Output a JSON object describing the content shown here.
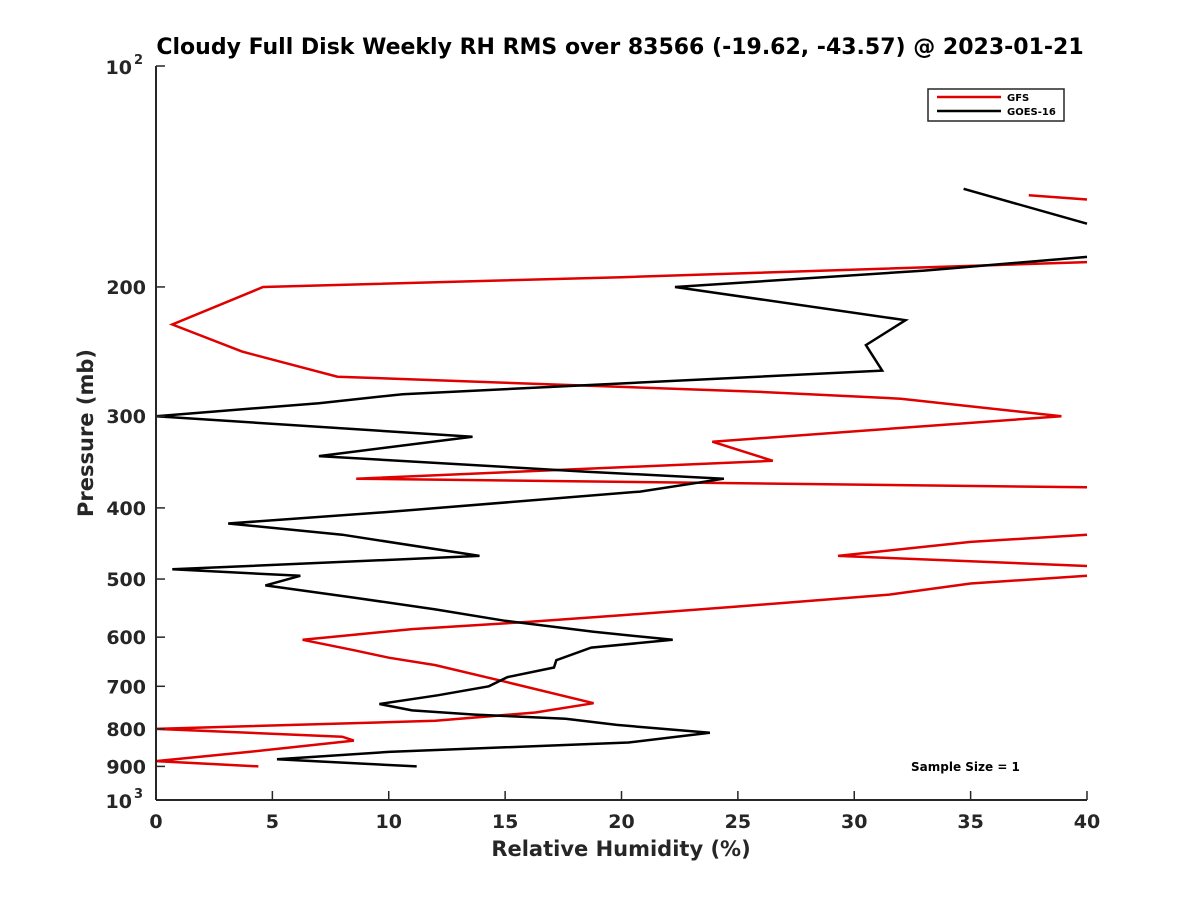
{
  "chart_data": {
    "type": "line",
    "title": "Cloudy Full Disk Weekly RH RMS over 83566 (-19.62, -43.57) @ 2023-01-21",
    "xlabel": "Relative Humidity (%)",
    "ylabel": "Pressure (mb)",
    "xlim": [
      0,
      40
    ],
    "ylim": [
      100,
      1000
    ],
    "yscale": "log",
    "y_reversed": true,
    "grid": false,
    "legend_position": "top-right",
    "x_ticks": [
      "0",
      "5",
      "10",
      "15",
      "20",
      "25",
      "30",
      "35",
      "40"
    ],
    "y_ticks": [
      {
        "value": 100,
        "base": "10",
        "exp": "2"
      },
      {
        "value": 200,
        "label": "200"
      },
      {
        "value": 300,
        "label": "300"
      },
      {
        "value": 400,
        "label": "400"
      },
      {
        "value": 500,
        "label": "500"
      },
      {
        "value": 600,
        "label": "600"
      },
      {
        "value": 700,
        "label": "700"
      },
      {
        "value": 800,
        "label": "800"
      },
      {
        "value": 900,
        "label": "900"
      },
      {
        "value": 1000,
        "base": "10",
        "exp": "3"
      }
    ],
    "annotation": "Sample Size = 1",
    "series": [
      {
        "name": "GFS",
        "color": "#e00000",
        "segments": [
          [
            [
              37.5,
              150
            ],
            [
              40,
              152
            ]
          ],
          [
            [
              40,
              185
            ],
            [
              20,
              194
            ],
            [
              4.6,
              200
            ],
            [
              0.7,
              225
            ],
            [
              3.7,
              245
            ],
            [
              7.8,
              265
            ],
            [
              26,
              278
            ],
            [
              32,
              284
            ],
            [
              38.9,
              300
            ],
            [
              23.9,
              325
            ],
            [
              26.5,
              345
            ],
            [
              8.6,
              365
            ],
            [
              40,
              375
            ]
          ],
          [
            [
              40,
              435
            ],
            [
              35,
              445
            ],
            [
              29.3,
              465
            ],
            [
              40,
              480
            ]
          ],
          [
            [
              40,
              495
            ],
            [
              35,
              507
            ],
            [
              31.5,
              525
            ],
            [
              25,
              545
            ],
            [
              20,
              560
            ],
            [
              16,
              572
            ],
            [
              11,
              585
            ],
            [
              6.3,
              605
            ],
            [
              8.5,
              625
            ],
            [
              10,
              640
            ],
            [
              12,
              655
            ],
            [
              15,
              690
            ],
            [
              18.8,
              738
            ],
            [
              16.3,
              760
            ],
            [
              12,
              780
            ],
            [
              0,
              800
            ],
            [
              8,
              820
            ],
            [
              8.5,
              830
            ],
            [
              4,
              860
            ],
            [
              0,
              885
            ],
            [
              4.4,
              900
            ]
          ]
        ]
      },
      {
        "name": "GOES-16",
        "color": "#000000",
        "segments": [
          [
            [
              34.7,
              147
            ],
            [
              40,
              164
            ]
          ],
          [
            [
              40,
              182
            ],
            [
              33,
              190
            ],
            [
              22.3,
              200
            ],
            [
              32.2,
              222
            ],
            [
              30.5,
              240
            ],
            [
              31.2,
              260
            ],
            [
              10.6,
              280
            ],
            [
              7,
              288
            ],
            [
              0,
              300
            ],
            [
              13.6,
              320
            ],
            [
              7,
              340
            ],
            [
              18.5,
              357
            ],
            [
              24.4,
              365
            ],
            [
              20.8,
              380
            ],
            [
              10,
              405
            ],
            [
              3.1,
              420
            ],
            [
              8,
              435
            ],
            [
              13.9,
              465
            ],
            [
              0.7,
              485
            ],
            [
              6.2,
              495
            ],
            [
              4.7,
              510
            ],
            [
              8.5,
              530
            ],
            [
              12,
              550
            ],
            [
              15,
              570
            ],
            [
              18.8,
              590
            ],
            [
              22.2,
              605
            ],
            [
              18.7,
              620
            ],
            [
              17.2,
              645
            ],
            [
              17.1,
              660
            ],
            [
              15.1,
              680
            ],
            [
              14.3,
              700
            ],
            [
              12.1,
              720
            ],
            [
              9.6,
              740
            ],
            [
              11,
              755
            ],
            [
              13.7,
              765
            ],
            [
              17.6,
              775
            ],
            [
              19.8,
              790
            ],
            [
              23.8,
              810
            ],
            [
              20.3,
              835
            ],
            [
              10,
              860
            ],
            [
              5.2,
              880
            ],
            [
              11.2,
              900
            ]
          ]
        ]
      }
    ]
  }
}
